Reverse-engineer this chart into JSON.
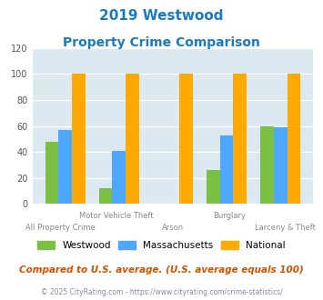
{
  "title_line1": "2019 Westwood",
  "title_line2": "Property Crime Comparison",
  "categories": [
    "All Property Crime",
    "Motor Vehicle Theft",
    "Arson",
    "Burglary",
    "Larceny & Theft"
  ],
  "top_labels": [
    "",
    "Motor Vehicle Theft",
    "",
    "Burglary",
    ""
  ],
  "bottom_labels": [
    "All Property Crime",
    "",
    "Arson",
    "",
    "Larceny & Theft"
  ],
  "westwood": [
    48,
    12,
    0,
    26,
    60
  ],
  "massachusetts": [
    57,
    41,
    0,
    53,
    59
  ],
  "national": [
    100,
    100,
    100,
    100,
    100
  ],
  "colors": {
    "westwood": "#7bc043",
    "massachusetts": "#4da6ff",
    "national": "#ffaa00"
  },
  "ylim": [
    0,
    120
  ],
  "yticks": [
    0,
    20,
    40,
    60,
    80,
    100,
    120
  ],
  "plot_bg": "#dce9f0",
  "title_color": "#1a7abf",
  "footnote": "Compared to U.S. average. (U.S. average equals 100)",
  "copyright": "© 2025 CityRating.com - https://www.cityrating.com/crime-statistics/",
  "footnote_color": "#cc5500",
  "copyright_color": "#8888aa"
}
